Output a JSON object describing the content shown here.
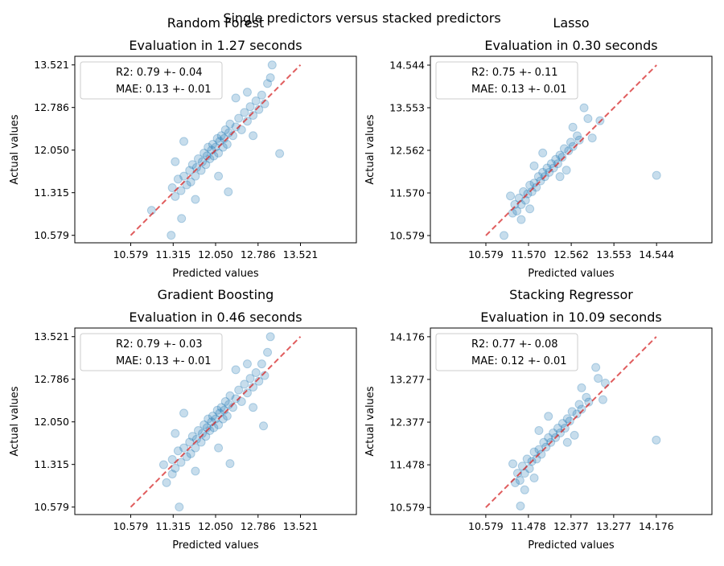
{
  "figure": {
    "suptitle": "Single predictors versus stacked predictors"
  },
  "chart_data": [
    {
      "type": "scatter",
      "title": "Random Forest",
      "subtitle": "Evaluation in 1.27 seconds",
      "xlabel": "Predicted values",
      "ylabel": "Actual values",
      "xlim": [
        9.61,
        14.49
      ],
      "ylim": [
        10.45,
        13.67
      ],
      "xticks": [
        "10.579",
        "11.315",
        "12.050",
        "12.786",
        "13.521"
      ],
      "yticks": [
        "10.579",
        "11.315",
        "12.050",
        "12.786",
        "13.521"
      ],
      "legend": [
        "R2: 0.79 +- 0.04",
        "MAE: 0.13 +- 0.01"
      ],
      "legend_position": "upper left",
      "reference_line": [
        10.579,
        13.521
      ],
      "points": [
        [
          11.3,
          11.4
        ],
        [
          11.35,
          11.25
        ],
        [
          11.4,
          11.55
        ],
        [
          11.45,
          11.35
        ],
        [
          11.5,
          11.6
        ],
        [
          11.55,
          11.45
        ],
        [
          11.6,
          11.7
        ],
        [
          11.62,
          11.5
        ],
        [
          11.65,
          11.8
        ],
        [
          11.7,
          11.6
        ],
        [
          11.72,
          11.75
        ],
        [
          11.75,
          11.9
        ],
        [
          11.8,
          11.7
        ],
        [
          11.82,
          11.85
        ],
        [
          11.85,
          12.0
        ],
        [
          11.88,
          11.8
        ],
        [
          11.9,
          11.95
        ],
        [
          11.92,
          12.1
        ],
        [
          11.95,
          11.9
        ],
        [
          11.98,
          12.05
        ],
        [
          12.0,
          12.15
        ],
        [
          12.02,
          11.95
        ],
        [
          12.05,
          12.1
        ],
        [
          12.08,
          12.25
        ],
        [
          12.1,
          12.0
        ],
        [
          12.12,
          12.2
        ],
        [
          12.15,
          12.3
        ],
        [
          12.18,
          12.1
        ],
        [
          12.2,
          12.25
        ],
        [
          12.22,
          12.4
        ],
        [
          12.25,
          12.15
        ],
        [
          12.28,
          12.35
        ],
        [
          12.3,
          12.5
        ],
        [
          12.35,
          12.3
        ],
        [
          12.4,
          12.45
        ],
        [
          12.45,
          12.6
        ],
        [
          12.5,
          12.4
        ],
        [
          12.55,
          12.7
        ],
        [
          12.6,
          12.55
        ],
        [
          12.65,
          12.8
        ],
        [
          12.7,
          12.65
        ],
        [
          12.75,
          12.9
        ],
        [
          12.8,
          12.75
        ],
        [
          12.85,
          13.0
        ],
        [
          12.9,
          12.85
        ],
        [
          12.95,
          13.2
        ],
        [
          13.0,
          13.3
        ],
        [
          13.03,
          13.52
        ],
        [
          13.16,
          11.99
        ],
        [
          11.28,
          10.58
        ],
        [
          10.94,
          11.01
        ],
        [
          11.46,
          10.87
        ],
        [
          12.27,
          11.33
        ],
        [
          11.5,
          12.2
        ],
        [
          11.35,
          11.85
        ],
        [
          12.6,
          13.05
        ],
        [
          12.1,
          11.6
        ],
        [
          12.7,
          12.3
        ],
        [
          11.7,
          11.2
        ],
        [
          12.4,
          12.95
        ]
      ]
    },
    {
      "type": "scatter",
      "title": "Lasso",
      "subtitle": "Evaluation in 0.30 seconds",
      "xlabel": "Predicted values",
      "ylabel": "Actual values",
      "xlim": [
        9.29,
        15.83
      ],
      "ylim": [
        10.41,
        14.75
      ],
      "xticks": [
        "10.579",
        "11.570",
        "12.562",
        "13.553",
        "14.544"
      ],
      "yticks": [
        "10.579",
        "11.570",
        "12.562",
        "13.553",
        "14.544"
      ],
      "legend": [
        "R2: 0.75 +- 0.11",
        "MAE: 0.13 +- 0.01"
      ],
      "legend_position": "upper left",
      "reference_line": [
        10.579,
        14.544
      ],
      "points": [
        [
          11.0,
          10.58
        ],
        [
          11.2,
          11.1
        ],
        [
          11.25,
          11.3
        ],
        [
          11.3,
          11.15
        ],
        [
          11.35,
          11.45
        ],
        [
          11.4,
          11.3
        ],
        [
          11.45,
          11.6
        ],
        [
          11.5,
          11.4
        ],
        [
          11.55,
          11.55
        ],
        [
          11.6,
          11.75
        ],
        [
          11.65,
          11.6
        ],
        [
          11.7,
          11.8
        ],
        [
          11.75,
          11.7
        ],
        [
          11.8,
          11.95
        ],
        [
          11.85,
          11.85
        ],
        [
          11.9,
          12.05
        ],
        [
          11.95,
          11.95
        ],
        [
          12.0,
          12.15
        ],
        [
          12.05,
          12.05
        ],
        [
          12.1,
          12.25
        ],
        [
          12.15,
          12.15
        ],
        [
          12.2,
          12.35
        ],
        [
          12.25,
          12.25
        ],
        [
          12.3,
          12.45
        ],
        [
          12.35,
          12.4
        ],
        [
          12.4,
          12.6
        ],
        [
          12.5,
          12.55
        ],
        [
          12.55,
          12.75
        ],
        [
          12.6,
          12.65
        ],
        [
          12.7,
          12.9
        ],
        [
          12.75,
          12.8
        ],
        [
          12.86,
          13.55
        ],
        [
          13.23,
          13.25
        ],
        [
          12.95,
          13.3
        ],
        [
          13.05,
          12.85
        ],
        [
          14.544,
          11.98
        ],
        [
          11.15,
          11.5
        ],
        [
          11.6,
          11.2
        ],
        [
          12.3,
          11.95
        ],
        [
          11.9,
          12.5
        ],
        [
          12.6,
          13.1
        ],
        [
          11.4,
          10.95
        ],
        [
          12.45,
          12.1
        ],
        [
          11.7,
          12.2
        ]
      ]
    },
    {
      "type": "scatter",
      "title": "Gradient Boosting",
      "subtitle": "Evaluation in 0.46 seconds",
      "xlabel": "Predicted values",
      "ylabel": "Actual values",
      "xlim": [
        9.61,
        14.49
      ],
      "ylim": [
        10.45,
        13.67
      ],
      "xticks": [
        "10.579",
        "11.315",
        "12.050",
        "12.786",
        "13.521"
      ],
      "yticks": [
        "10.579",
        "11.315",
        "12.050",
        "12.786",
        "13.521"
      ],
      "legend": [
        "R2: 0.79 +- 0.03",
        "MAE: 0.13 +- 0.01"
      ],
      "legend_position": "upper left",
      "reference_line": [
        10.579,
        13.521
      ],
      "points": [
        [
          11.3,
          11.4
        ],
        [
          11.35,
          11.25
        ],
        [
          11.4,
          11.55
        ],
        [
          11.45,
          11.35
        ],
        [
          11.5,
          11.6
        ],
        [
          11.55,
          11.45
        ],
        [
          11.6,
          11.7
        ],
        [
          11.62,
          11.5
        ],
        [
          11.65,
          11.8
        ],
        [
          11.7,
          11.6
        ],
        [
          11.72,
          11.75
        ],
        [
          11.75,
          11.9
        ],
        [
          11.8,
          11.7
        ],
        [
          11.82,
          11.85
        ],
        [
          11.85,
          12.0
        ],
        [
          11.88,
          11.8
        ],
        [
          11.9,
          11.95
        ],
        [
          11.92,
          12.1
        ],
        [
          11.95,
          11.9
        ],
        [
          11.98,
          12.05
        ],
        [
          12.0,
          12.15
        ],
        [
          12.02,
          11.95
        ],
        [
          12.05,
          12.1
        ],
        [
          12.08,
          12.25
        ],
        [
          12.1,
          12.0
        ],
        [
          12.12,
          12.2
        ],
        [
          12.15,
          12.3
        ],
        [
          12.18,
          12.1
        ],
        [
          12.2,
          12.25
        ],
        [
          12.22,
          12.4
        ],
        [
          12.25,
          12.15
        ],
        [
          12.28,
          12.35
        ],
        [
          12.3,
          12.5
        ],
        [
          12.35,
          12.3
        ],
        [
          12.4,
          12.45
        ],
        [
          12.45,
          12.6
        ],
        [
          12.5,
          12.4
        ],
        [
          12.55,
          12.7
        ],
        [
          12.6,
          12.55
        ],
        [
          12.65,
          12.8
        ],
        [
          12.7,
          12.65
        ],
        [
          12.75,
          12.9
        ],
        [
          12.8,
          12.75
        ],
        [
          12.85,
          13.05
        ],
        [
          12.9,
          12.85
        ],
        [
          12.95,
          13.25
        ],
        [
          13.0,
          13.52
        ],
        [
          12.88,
          11.98
        ],
        [
          11.42,
          10.58
        ],
        [
          11.15,
          11.31
        ],
        [
          11.2,
          11.0
        ],
        [
          11.3,
          11.15
        ],
        [
          12.3,
          11.33
        ],
        [
          11.5,
          12.2
        ],
        [
          11.35,
          11.85
        ],
        [
          12.6,
          13.05
        ],
        [
          12.1,
          11.6
        ],
        [
          12.7,
          12.3
        ],
        [
          11.7,
          11.2
        ],
        [
          12.4,
          12.95
        ]
      ]
    },
    {
      "type": "scatter",
      "title": "Stacking Regressor",
      "subtitle": "Evaluation in 10.09 seconds",
      "xlabel": "Predicted values",
      "ylabel": "Actual values",
      "xlim": [
        9.41,
        15.35
      ],
      "ylim": [
        10.43,
        14.36
      ],
      "xticks": [
        "10.579",
        "11.478",
        "12.377",
        "13.277",
        "14.176"
      ],
      "yticks": [
        "10.579",
        "11.478",
        "12.377",
        "13.277",
        "14.176"
      ],
      "legend": [
        "R2: 0.77 +- 0.08",
        "MAE: 0.12 +- 0.01"
      ],
      "legend_position": "upper left",
      "reference_line": [
        10.579,
        14.176
      ],
      "points": [
        [
          11.31,
          10.61
        ],
        [
          11.2,
          11.1
        ],
        [
          11.25,
          11.3
        ],
        [
          11.3,
          11.15
        ],
        [
          11.35,
          11.45
        ],
        [
          11.4,
          11.3
        ],
        [
          11.45,
          11.6
        ],
        [
          11.5,
          11.4
        ],
        [
          11.55,
          11.55
        ],
        [
          11.6,
          11.75
        ],
        [
          11.65,
          11.6
        ],
        [
          11.7,
          11.8
        ],
        [
          11.75,
          11.7
        ],
        [
          11.8,
          11.95
        ],
        [
          11.85,
          11.85
        ],
        [
          11.9,
          12.05
        ],
        [
          11.95,
          11.95
        ],
        [
          12.0,
          12.15
        ],
        [
          12.05,
          12.05
        ],
        [
          12.1,
          12.25
        ],
        [
          12.15,
          12.15
        ],
        [
          12.2,
          12.35
        ],
        [
          12.25,
          12.25
        ],
        [
          12.3,
          12.45
        ],
        [
          12.35,
          12.4
        ],
        [
          12.4,
          12.6
        ],
        [
          12.5,
          12.55
        ],
        [
          12.55,
          12.75
        ],
        [
          12.6,
          12.65
        ],
        [
          12.7,
          12.9
        ],
        [
          12.75,
          12.8
        ],
        [
          12.9,
          13.53
        ],
        [
          13.1,
          13.2
        ],
        [
          12.95,
          13.3
        ],
        [
          13.05,
          12.85
        ],
        [
          14.176,
          12.0
        ],
        [
          11.15,
          11.5
        ],
        [
          11.6,
          11.2
        ],
        [
          12.3,
          11.95
        ],
        [
          11.9,
          12.5
        ],
        [
          12.6,
          13.1
        ],
        [
          11.4,
          10.95
        ],
        [
          12.45,
          12.1
        ],
        [
          11.7,
          12.2
        ]
      ]
    }
  ],
  "colors": {
    "points": "#1f77b4",
    "reference_line": "#d62728"
  }
}
